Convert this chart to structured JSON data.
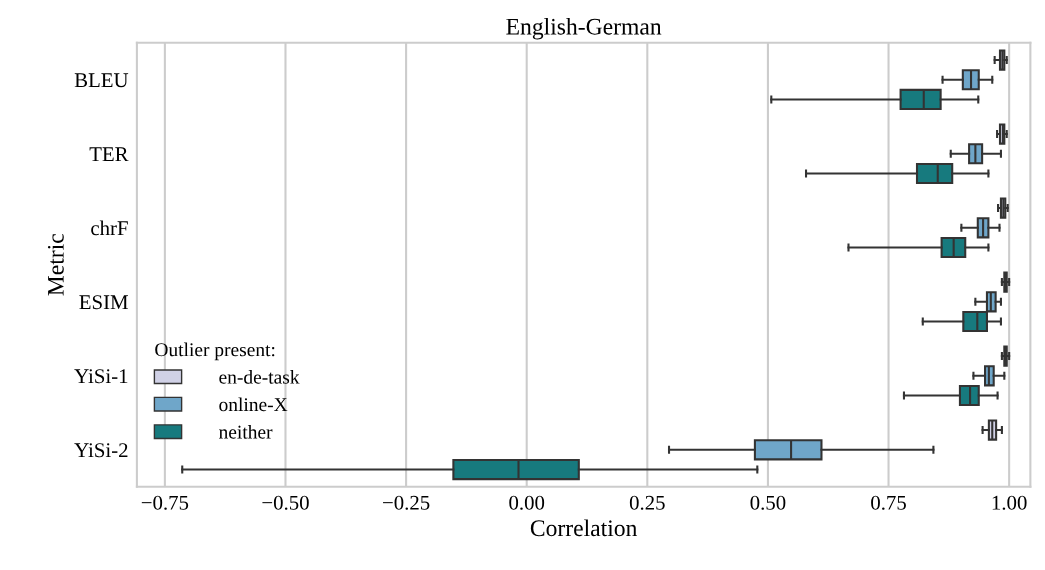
{
  "chart_data": {
    "type": "box",
    "orientation": "horizontal",
    "title": "English-German",
    "xlabel": "Correlation",
    "ylabel": "Metric",
    "legend_title": "Outlier present:",
    "categories": [
      "BLEU",
      "TER",
      "chrF",
      "ESIM",
      "YiSi-1",
      "YiSi-2"
    ],
    "xlim": [
      -0.808,
      1.044
    ],
    "xticks": [
      {
        "value": -0.75,
        "label": "−0.75"
      },
      {
        "value": -0.5,
        "label": "−0.50"
      },
      {
        "value": -0.25,
        "label": "−0.25"
      },
      {
        "value": 0,
        "label": "0.00"
      },
      {
        "value": 0.25,
        "label": "0.25"
      },
      {
        "value": 0.5,
        "label": "0.50"
      },
      {
        "value": 0.75,
        "label": "0.75"
      },
      {
        "value": 1,
        "label": "1.00"
      }
    ],
    "grid": "x",
    "legend": "lower left",
    "series": [
      {
        "name": "en-de-task",
        "color": "#d0d1e6",
        "boxes": [
          {
            "low": 0.97,
            "q1": 0.981,
            "median": 0.986,
            "q3": 0.99,
            "high": 0.995
          },
          {
            "low": 0.975,
            "q1": 0.981,
            "median": 0.987,
            "q3": 0.99,
            "high": 0.995
          },
          {
            "low": 0.977,
            "q1": 0.983,
            "median": 0.988,
            "q3": 0.992,
            "high": 0.997
          },
          {
            "low": 0.985,
            "q1": 0.99,
            "median": 0.993,
            "q3": 0.995,
            "high": 1.0
          },
          {
            "low": 0.985,
            "q1": 0.99,
            "median": 0.993,
            "q3": 0.995,
            "high": 1.0
          },
          {
            "low": 0.945,
            "q1": 0.958,
            "median": 0.965,
            "q3": 0.973,
            "high": 0.985
          }
        ]
      },
      {
        "name": "online-X",
        "color": "#6fa6c9",
        "boxes": [
          {
            "low": 0.862,
            "q1": 0.904,
            "median": 0.921,
            "q3": 0.937,
            "high": 0.965
          },
          {
            "low": 0.879,
            "q1": 0.917,
            "median": 0.93,
            "q3": 0.944,
            "high": 0.983
          },
          {
            "low": 0.901,
            "q1": 0.935,
            "median": 0.946,
            "q3": 0.957,
            "high": 0.98
          },
          {
            "low": 0.93,
            "q1": 0.954,
            "median": 0.962,
            "q3": 0.972,
            "high": 0.983
          },
          {
            "low": 0.926,
            "q1": 0.95,
            "median": 0.958,
            "q3": 0.968,
            "high": 0.99
          },
          {
            "low": 0.295,
            "q1": 0.473,
            "median": 0.548,
            "q3": 0.611,
            "high": 0.843
          }
        ]
      },
      {
        "name": "neither",
        "color": "#177a7e",
        "boxes": [
          {
            "low": 0.507,
            "q1": 0.775,
            "median": 0.823,
            "q3": 0.858,
            "high": 0.936
          },
          {
            "low": 0.579,
            "q1": 0.809,
            "median": 0.852,
            "q3": 0.882,
            "high": 0.957
          },
          {
            "low": 0.667,
            "q1": 0.86,
            "median": 0.885,
            "q3": 0.909,
            "high": 0.957
          },
          {
            "low": 0.821,
            "q1": 0.905,
            "median": 0.934,
            "q3": 0.954,
            "high": 0.983
          },
          {
            "low": 0.782,
            "q1": 0.898,
            "median": 0.919,
            "q3": 0.937,
            "high": 0.976
          },
          {
            "low": -0.714,
            "q1": -0.152,
            "median": -0.017,
            "q3": 0.108,
            "high": 0.478
          }
        ]
      }
    ]
  }
}
